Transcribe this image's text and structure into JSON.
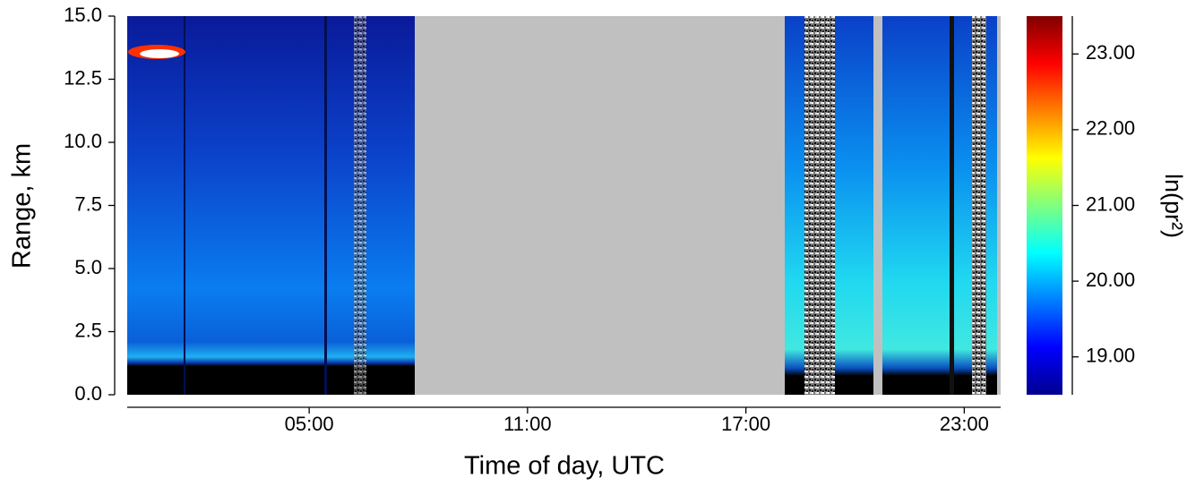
{
  "chart_data": {
    "type": "heatmap",
    "x_label": "Time of day, UTC",
    "y_label": "Range, km",
    "xlim": [
      0,
      24
    ],
    "xticks": [
      {
        "value": 5,
        "label": "05:00"
      },
      {
        "value": 11,
        "label": "11:00"
      },
      {
        "value": 17,
        "label": "17:00"
      },
      {
        "value": 23,
        "label": "23:00"
      }
    ],
    "ylim": [
      0,
      15
    ],
    "yticks": [
      {
        "value": 0,
        "label": "0.0"
      },
      2.5,
      {
        "value": 5,
        "label": "5.0"
      },
      7.5,
      {
        "value": 10,
        "label": "10.0"
      },
      12.5,
      {
        "value": 15,
        "label": "15.0"
      }
    ],
    "colorbar": {
      "label": "ln(pr²)",
      "colormap": "jet",
      "clim": [
        18.5,
        23.5
      ],
      "ticks": [
        {
          "value": 19,
          "label": "19.00"
        },
        {
          "value": 20,
          "label": "20.00"
        },
        {
          "value": 21,
          "label": "21.00"
        },
        {
          "value": 22,
          "label": "22.00"
        },
        {
          "value": 23,
          "label": "23.00"
        }
      ]
    }
  }
}
